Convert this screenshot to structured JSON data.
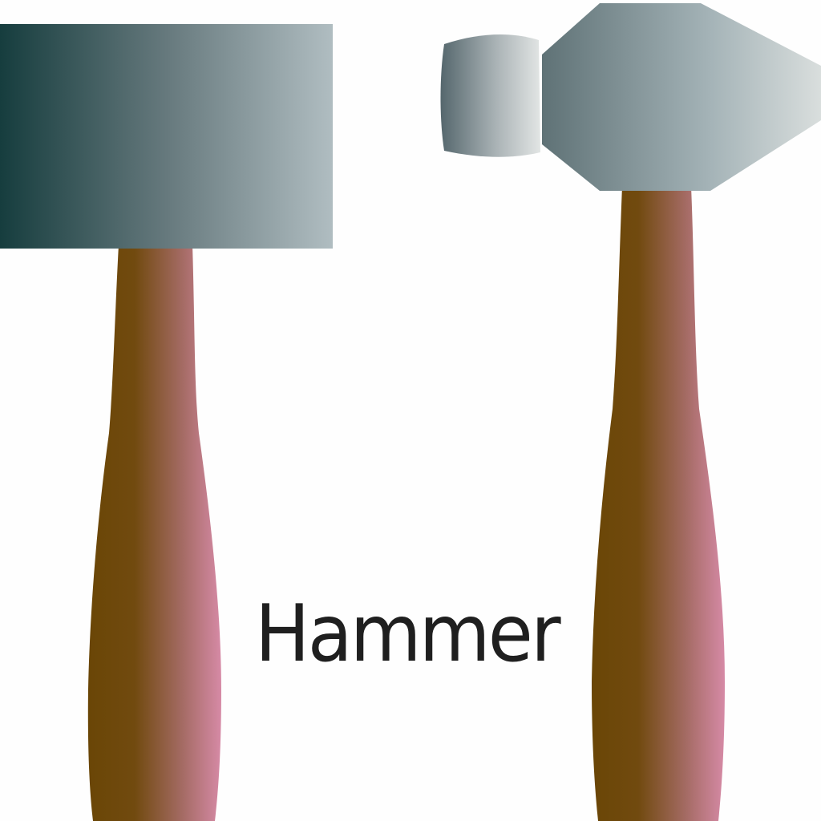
{
  "caption": "Hammer",
  "colors": {
    "background": "#fefefe",
    "head_dark": "#163d3e",
    "head_light": "#aebbbf",
    "handle_dark": "#6a4606",
    "handle_light": "#d488a3",
    "text": "#1f1f1f"
  },
  "icons": [
    "sledgehammer-icon",
    "ball-peen-hammer-icon"
  ]
}
